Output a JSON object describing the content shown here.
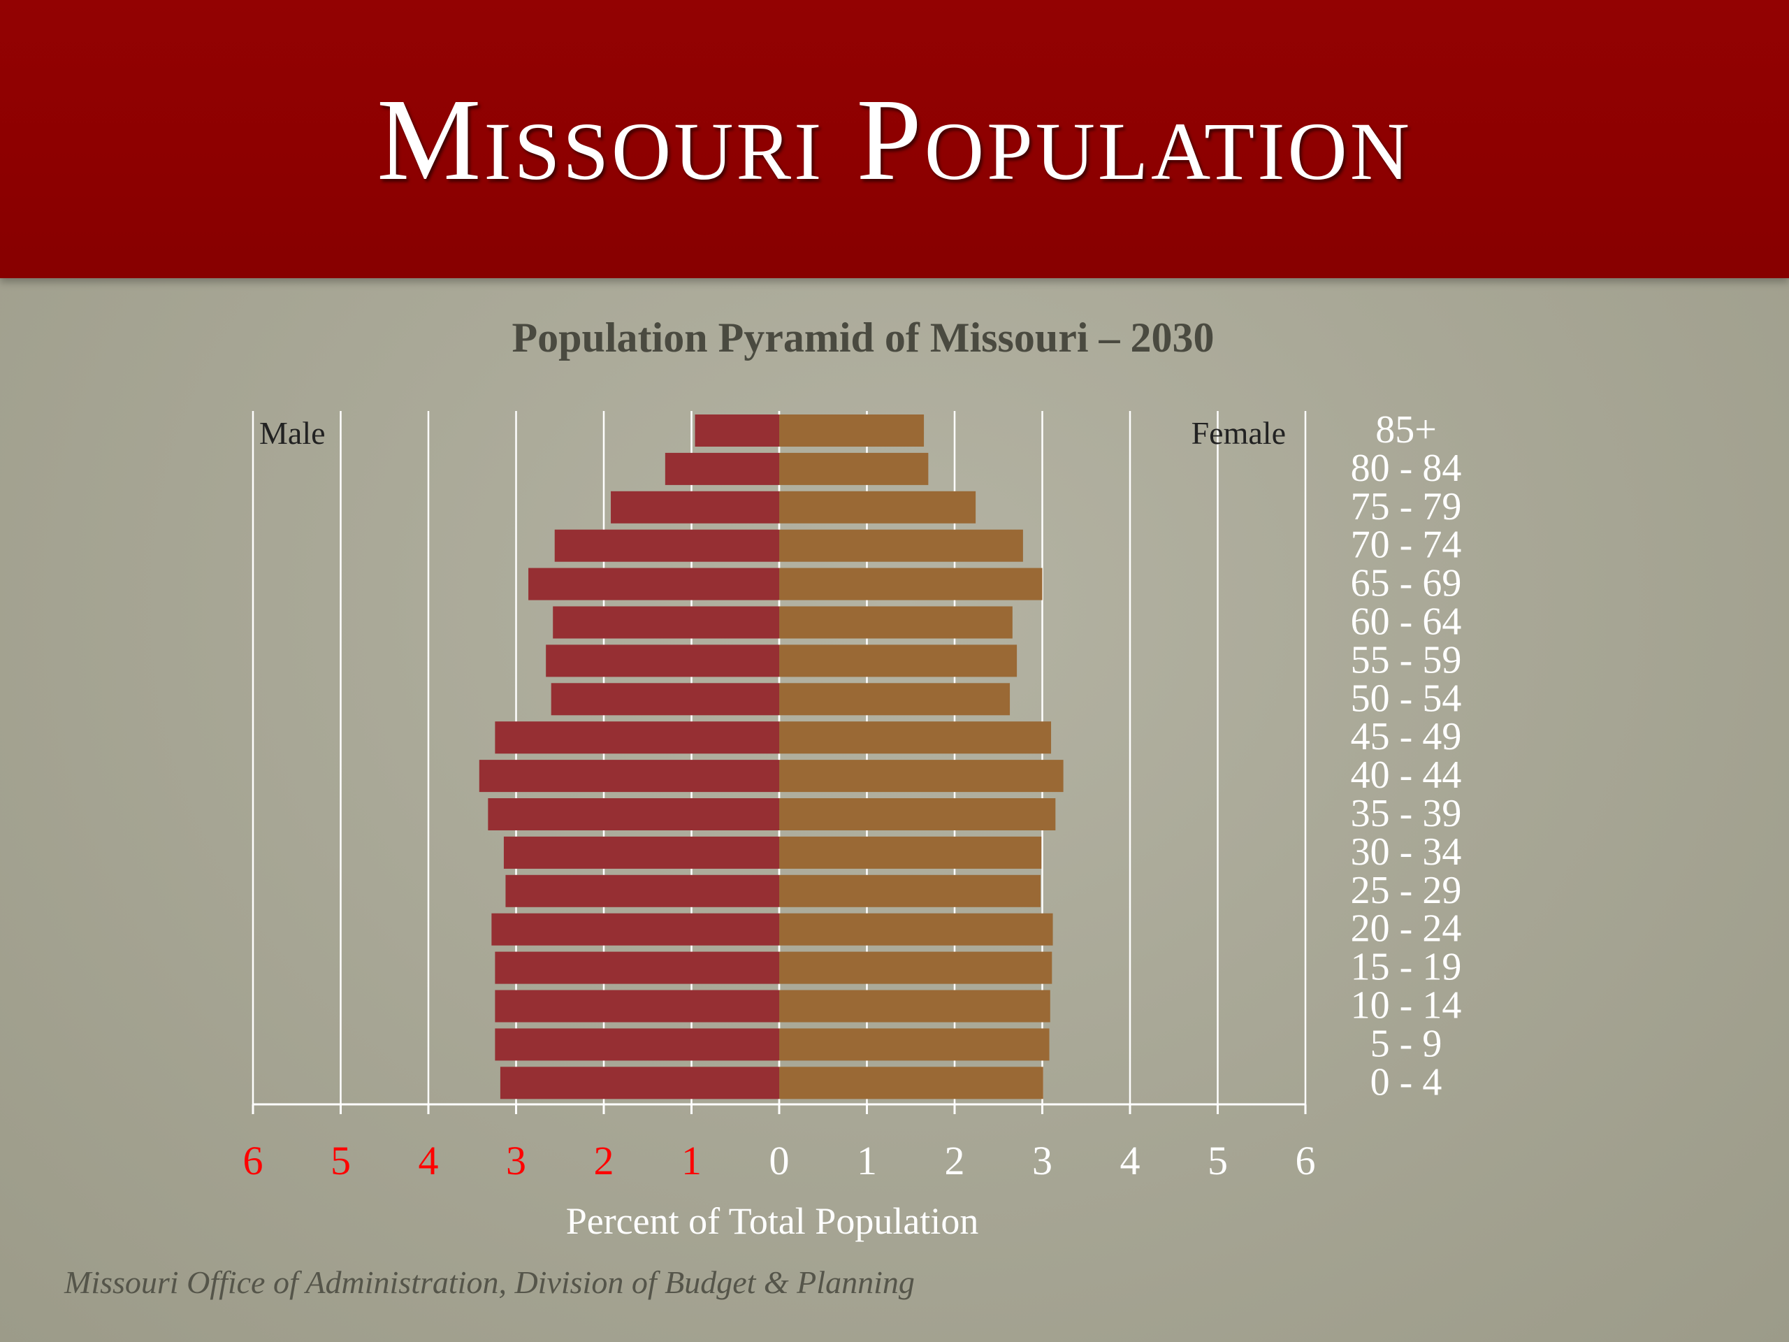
{
  "slide": {
    "title": "Missouri Population",
    "source_note": "Missouri Office of  Administration, Division of  Budget & Planning"
  },
  "colors": {
    "banner": "#8e0101",
    "male_bar": "#962f33",
    "female_bar": "#9a6935",
    "gridline": "#ffffff",
    "negative_tick": "#ff0000",
    "positive_tick": "#ffffff"
  },
  "chart_data": {
    "type": "bar",
    "orientation": "horizontal",
    "title": "Population Pyramid of Missouri – 2030",
    "xlabel": "Percent of Total Population",
    "ylabel": "",
    "xlim": [
      -6,
      6
    ],
    "grid": true,
    "x_tick_labels": [
      "6",
      "5",
      "4",
      "3",
      "2",
      "1",
      "0",
      "1",
      "2",
      "3",
      "4",
      "5",
      "6"
    ],
    "categories": [
      "85+",
      "80 - 84",
      "75 - 79",
      "70 - 74",
      "65 - 69",
      "60 - 64",
      "55 - 59",
      "50 - 54",
      "45 - 49",
      "40 - 44",
      "35 - 39",
      "30 - 34",
      "25 - 29",
      "20 - 24",
      "15 - 19",
      "10 - 14",
      "5 - 9",
      "0 - 4"
    ],
    "series": [
      {
        "name": "Male",
        "side": "left",
        "values": [
          0.96,
          1.3,
          1.92,
          2.56,
          2.86,
          2.58,
          2.66,
          2.6,
          3.24,
          3.42,
          3.32,
          3.14,
          3.12,
          3.28,
          3.24,
          3.24,
          3.24,
          3.18
        ]
      },
      {
        "name": "Female",
        "side": "right",
        "values": [
          1.65,
          1.7,
          2.24,
          2.78,
          3.0,
          2.66,
          2.71,
          2.63,
          3.1,
          3.24,
          3.15,
          2.99,
          2.98,
          3.12,
          3.11,
          3.09,
          3.08,
          3.01
        ]
      }
    ]
  }
}
